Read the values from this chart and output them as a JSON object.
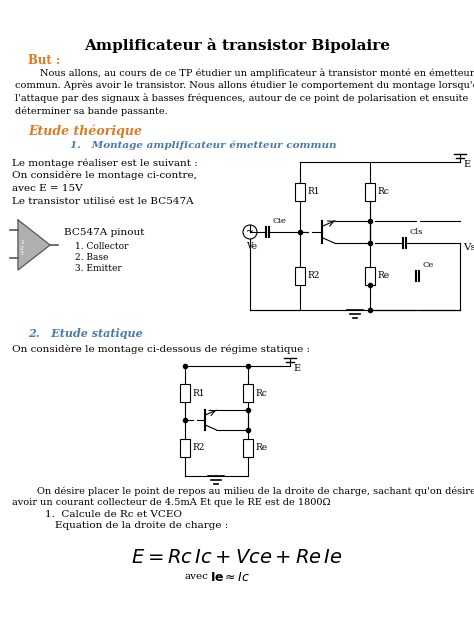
{
  "title": "Amplificateur à transistor Bipolaire",
  "section_but": "But :",
  "para1_indent": "        Nous allons, au cours de ce TP étudier un amplificateur à transistor monté en émetteur\ncommun. Après avoir le transistor. Nous allons étudier le comportement du montage lorsqu'on\nl'attaque par des signaux à basses fréquences, autour de ce point de polarisation et ensuite\ndéterminer sa bande passante.",
  "section_etude": "Etude théorique",
  "subsection1": "1.   Montage amplificateur émetteur commun",
  "line1": "Le montage réaliser est le suivant :",
  "line2": "On considère le montage ci-contre,",
  "line3": "avec E = 15V",
  "line4": "Le transistor utilisé est le BC547A",
  "bc_label": "BC547A pinout",
  "bc_line1": "1. Collector",
  "bc_line2": "2. Base",
  "bc_line3": "3. Emitter",
  "subsection2": "2.   Etude statique",
  "para2": "On considère le montage ci-dessous de régime statique :",
  "para3a": "        On désire placer le point de repos au milieu de la droite de charge, sachant qu'on désire",
  "para3b": "avoir un courant collecteur de 4.5mA Et que le RE est de 1800Ω",
  "item1_title": "1.  Calcule de Rc et VCEO",
  "item1_sub": "Equation de la droite de charge :",
  "color_but": "#e07820",
  "color_section": "#e07820",
  "color_sub1": "#4a7aad",
  "color_sub2": "#4a7aad",
  "bg_color": "#ffffff"
}
